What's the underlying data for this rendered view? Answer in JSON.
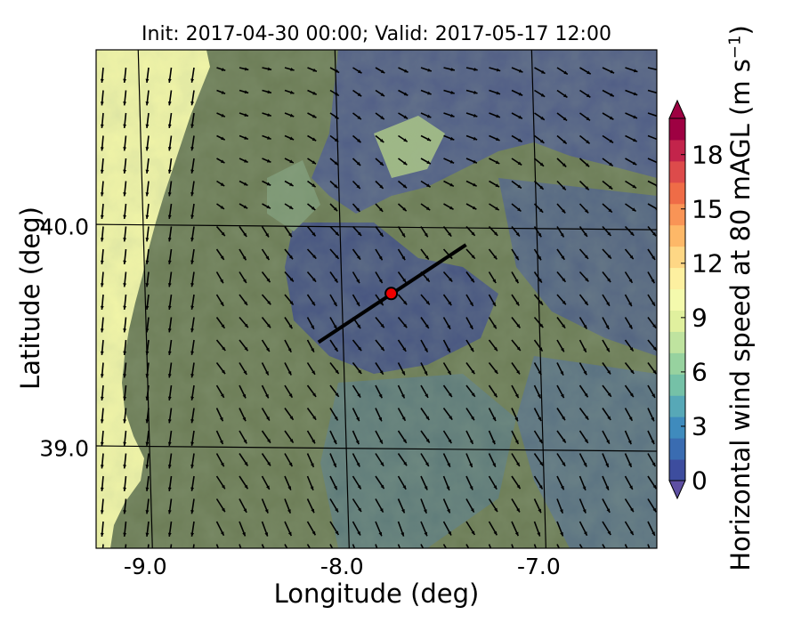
{
  "map": {
    "title": "Init: 2017-04-30 00:00; Valid: 2017-05-17 12:00",
    "x_label": "Longitude (deg)",
    "y_label": "Latitude (deg)",
    "x_ticks": [
      -9.0,
      -8.0,
      -7.0
    ],
    "x_tick_labels": [
      "-9.0",
      "-8.0",
      "-7.0"
    ],
    "y_ticks": [
      40.0,
      39.0
    ],
    "y_tick_labels": [
      "40.0",
      "39.0"
    ],
    "lon_range": [
      -9.25,
      -6.4
    ],
    "lat_range": [
      38.55,
      40.8
    ],
    "transect": {
      "start": [
        -8.12,
        39.48
      ],
      "end": [
        -7.37,
        39.92
      ]
    },
    "marker": {
      "lon": -7.75,
      "lat": 39.7,
      "color": "#ee0000"
    },
    "ocean_color": "#f4f7a8",
    "land_color": "#6b7b55"
  },
  "colorbar": {
    "label_main": "Horizontal wind speed at 80 mAGL (m s",
    "label_sup": "−1",
    "label_end": ")",
    "ticks": [
      0,
      3,
      6,
      9,
      12,
      15,
      18
    ],
    "tick_labels": [
      "0",
      "3",
      "6",
      "9",
      "12",
      "15",
      "18"
    ],
    "range": [
      0,
      20
    ],
    "colors": [
      "#3d4d9e",
      "#3a6cb1",
      "#3f8bbd",
      "#57a8b7",
      "#75c1a7",
      "#97d29f",
      "#bfe39f",
      "#e0f09e",
      "#f4faad",
      "#fdf0a0",
      "#fed785",
      "#fdb868",
      "#f99456",
      "#ef6c47",
      "#dd4b4b",
      "#c3244b",
      "#9e0142"
    ]
  }
}
